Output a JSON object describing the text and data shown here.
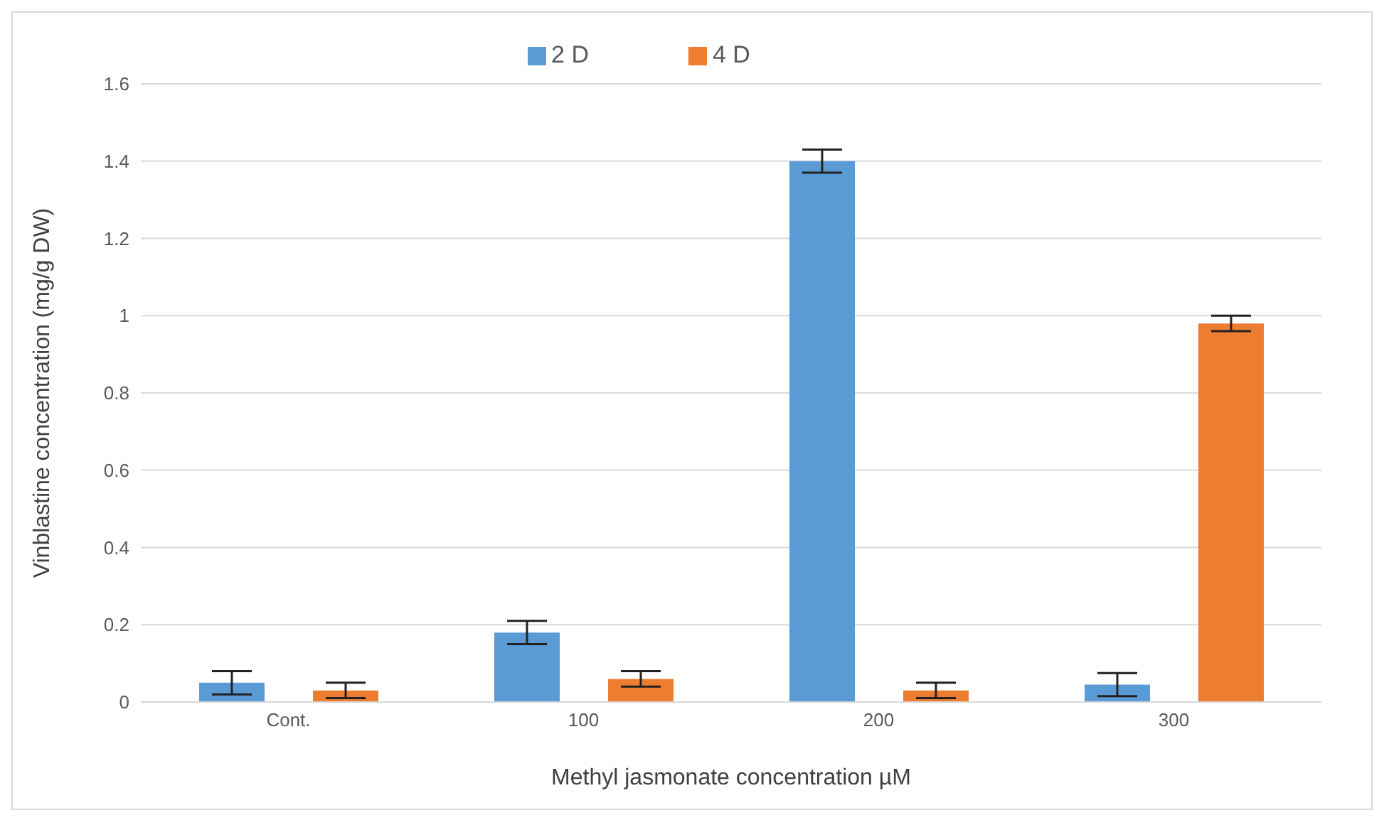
{
  "chart_data": {
    "type": "bar",
    "xlabel": "Methyl jasmonate concentration µM",
    "ylabel": "Vinblastine concentration (mg/g DW)",
    "categories": [
      "Cont.",
      "100",
      "200",
      "300"
    ],
    "series": [
      {
        "name": "2 D",
        "color": "#5b9bd5",
        "values": [
          0.05,
          0.18,
          1.4,
          0.045
        ],
        "errors": [
          0.03,
          0.03,
          0.03,
          0.03
        ]
      },
      {
        "name": "4 D",
        "color": "#ed7d31",
        "values": [
          0.03,
          0.06,
          0.03,
          0.98
        ],
        "errors": [
          0.02,
          0.02,
          0.02,
          0.02
        ]
      }
    ],
    "ylim": [
      0,
      1.6
    ],
    "yticks": [
      0,
      0.2,
      0.4,
      0.6,
      0.8,
      1,
      1.2,
      1.4,
      1.6
    ],
    "grid": "y",
    "legend": "top"
  }
}
